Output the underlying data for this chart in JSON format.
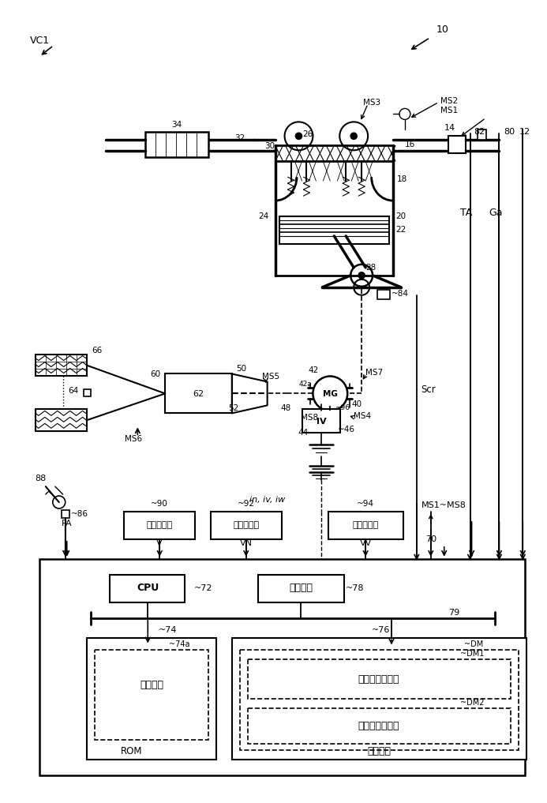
{
  "bg_color": "#ffffff",
  "fig_width": 6.76,
  "fig_height": 10.0
}
